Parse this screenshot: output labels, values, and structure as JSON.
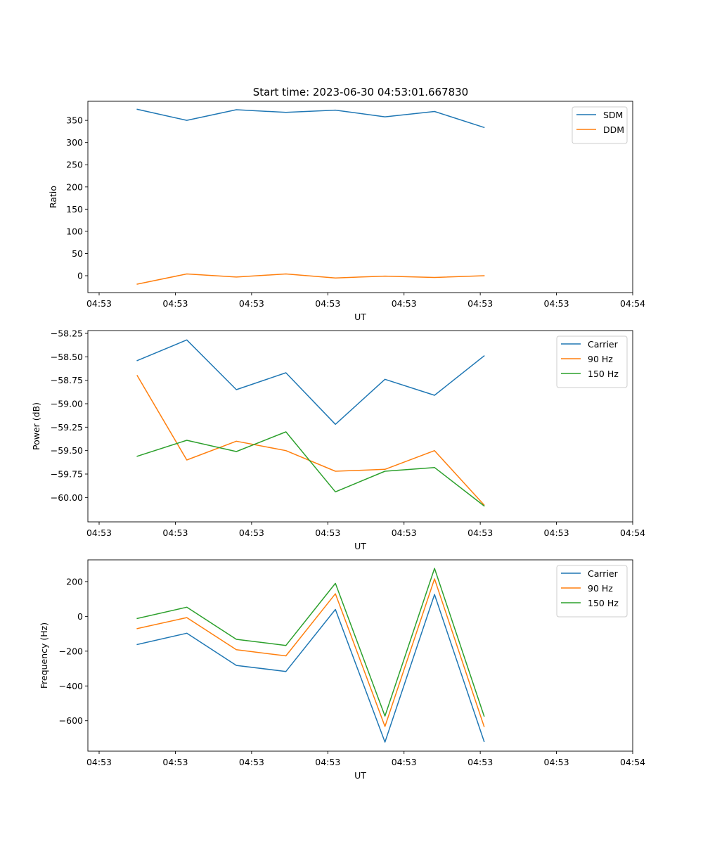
{
  "figure": {
    "title": "Start time: 2023-06-30 04:53:01.667830"
  },
  "chart_data": [
    {
      "type": "line",
      "xlabel": "UT",
      "ylabel": "Ratio",
      "x_ticks": [
        "04:53",
        "04:53",
        "04:53",
        "04:53",
        "04:53",
        "04:53",
        "04:53",
        "04:54"
      ],
      "x_range": [
        0,
        7
      ],
      "x": [
        0.5,
        1.15,
        1.8,
        2.45,
        3.1,
        3.75,
        4.4,
        5.05
      ],
      "ylim": [
        -38,
        393
      ],
      "y_ticks": [
        0,
        50,
        100,
        150,
        200,
        250,
        300,
        350
      ],
      "y_tick_labels": [
        "0",
        "50",
        "100",
        "150",
        "200",
        "250",
        "300",
        "350"
      ],
      "legend_position": "top-right",
      "grid": false,
      "series": [
        {
          "name": "SDM",
          "color": "#1f77b4",
          "values": [
            375,
            350,
            374,
            368,
            373,
            358,
            370,
            334
          ]
        },
        {
          "name": "DDM",
          "color": "#ff7f0e",
          "values": [
            -19,
            4,
            -3,
            4,
            -5,
            -1,
            -4,
            0
          ]
        }
      ]
    },
    {
      "type": "line",
      "xlabel": "UT",
      "ylabel": "Power (dB)",
      "x_ticks": [
        "04:53",
        "04:53",
        "04:53",
        "04:53",
        "04:53",
        "04:53",
        "04:53",
        "04:54"
      ],
      "x_range": [
        0,
        7
      ],
      "x": [
        0.5,
        1.15,
        1.8,
        2.45,
        3.1,
        3.75,
        4.4,
        5.05
      ],
      "ylim": [
        -60.26,
        -58.22
      ],
      "y_ticks": [
        -60.0,
        -59.75,
        -59.5,
        -59.25,
        -59.0,
        -58.75,
        -58.5,
        -58.25
      ],
      "y_tick_labels": [
        "−60.00",
        "−59.75",
        "−59.50",
        "−59.25",
        "−59.00",
        "−58.75",
        "−58.50",
        "−58.25"
      ],
      "legend_position": "top-right",
      "grid": false,
      "series": [
        {
          "name": "Carrier",
          "color": "#1f77b4",
          "values": [
            -58.54,
            -58.32,
            -58.85,
            -58.67,
            -59.22,
            -58.74,
            -58.91,
            -58.49
          ]
        },
        {
          "name": "90 Hz",
          "color": "#ff7f0e",
          "values": [
            -58.7,
            -59.6,
            -59.4,
            -59.5,
            -59.72,
            -59.7,
            -59.5,
            -60.08
          ]
        },
        {
          "name": "150 Hz",
          "color": "#2ca02c",
          "values": [
            -59.56,
            -59.39,
            -59.51,
            -59.3,
            -59.94,
            -59.72,
            -59.68,
            -60.09
          ]
        }
      ]
    },
    {
      "type": "line",
      "xlabel": "UT",
      "ylabel": "Frequency (Hz)",
      "x_ticks": [
        "04:53",
        "04:53",
        "04:53",
        "04:53",
        "04:53",
        "04:53",
        "04:53",
        "04:54"
      ],
      "x_range": [
        0,
        7
      ],
      "x": [
        0.5,
        1.15,
        1.8,
        2.45,
        3.1,
        3.75,
        4.4,
        5.05
      ],
      "ylim": [
        -775,
        325
      ],
      "y_ticks": [
        -600,
        -400,
        -200,
        0,
        200
      ],
      "y_tick_labels": [
        "−600",
        "−400",
        "−200",
        "0",
        "200"
      ],
      "legend_position": "top-right",
      "grid": false,
      "series": [
        {
          "name": "Carrier",
          "color": "#1f77b4",
          "values": [
            -162,
            -97,
            -282,
            -317,
            40,
            -723,
            126,
            -719
          ]
        },
        {
          "name": "90 Hz",
          "color": "#ff7f0e",
          "values": [
            -70,
            -7,
            -192,
            -227,
            130,
            -633,
            216,
            -633
          ]
        },
        {
          "name": "150 Hz",
          "color": "#2ca02c",
          "values": [
            -12,
            53,
            -132,
            -167,
            190,
            -573,
            276,
            -573
          ]
        }
      ]
    }
  ]
}
